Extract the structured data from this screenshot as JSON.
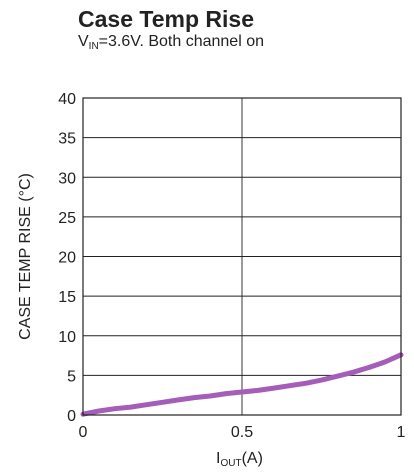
{
  "chart_data": {
    "type": "line",
    "title": "Case Temp Rise",
    "subtitle": {
      "prefix": "V",
      "sub": "IN",
      "suffix": "=3.6V. Both channel on"
    },
    "xlabel": {
      "prefix": "I",
      "sub": "OUT",
      "suffix": "(A)"
    },
    "ylabel": "CASE TEMP RISE (°C)",
    "xlim": [
      0,
      1
    ],
    "ylim": [
      0,
      40
    ],
    "xticks": [
      0,
      0.5,
      1
    ],
    "xtick_labels": [
      "0",
      "0.5",
      "1"
    ],
    "yticks": [
      0,
      5,
      10,
      15,
      20,
      25,
      30,
      35,
      40
    ],
    "ytick_labels": [
      "0",
      "5",
      "10",
      "15",
      "20",
      "25",
      "30",
      "35",
      "40"
    ],
    "grid": true,
    "series": [
      {
        "color": "#a45db8",
        "x": [
          0,
          0.05,
          0.1,
          0.15,
          0.2,
          0.25,
          0.3,
          0.35,
          0.4,
          0.45,
          0.5,
          0.55,
          0.6,
          0.65,
          0.7,
          0.75,
          0.8,
          0.85,
          0.9,
          0.95,
          1.0
        ],
        "y": [
          0.1,
          0.5,
          0.8,
          1.0,
          1.3,
          1.6,
          1.9,
          2.2,
          2.4,
          2.7,
          2.9,
          3.1,
          3.4,
          3.7,
          4.0,
          4.4,
          4.9,
          5.4,
          6.0,
          6.7,
          7.6
        ]
      }
    ]
  }
}
